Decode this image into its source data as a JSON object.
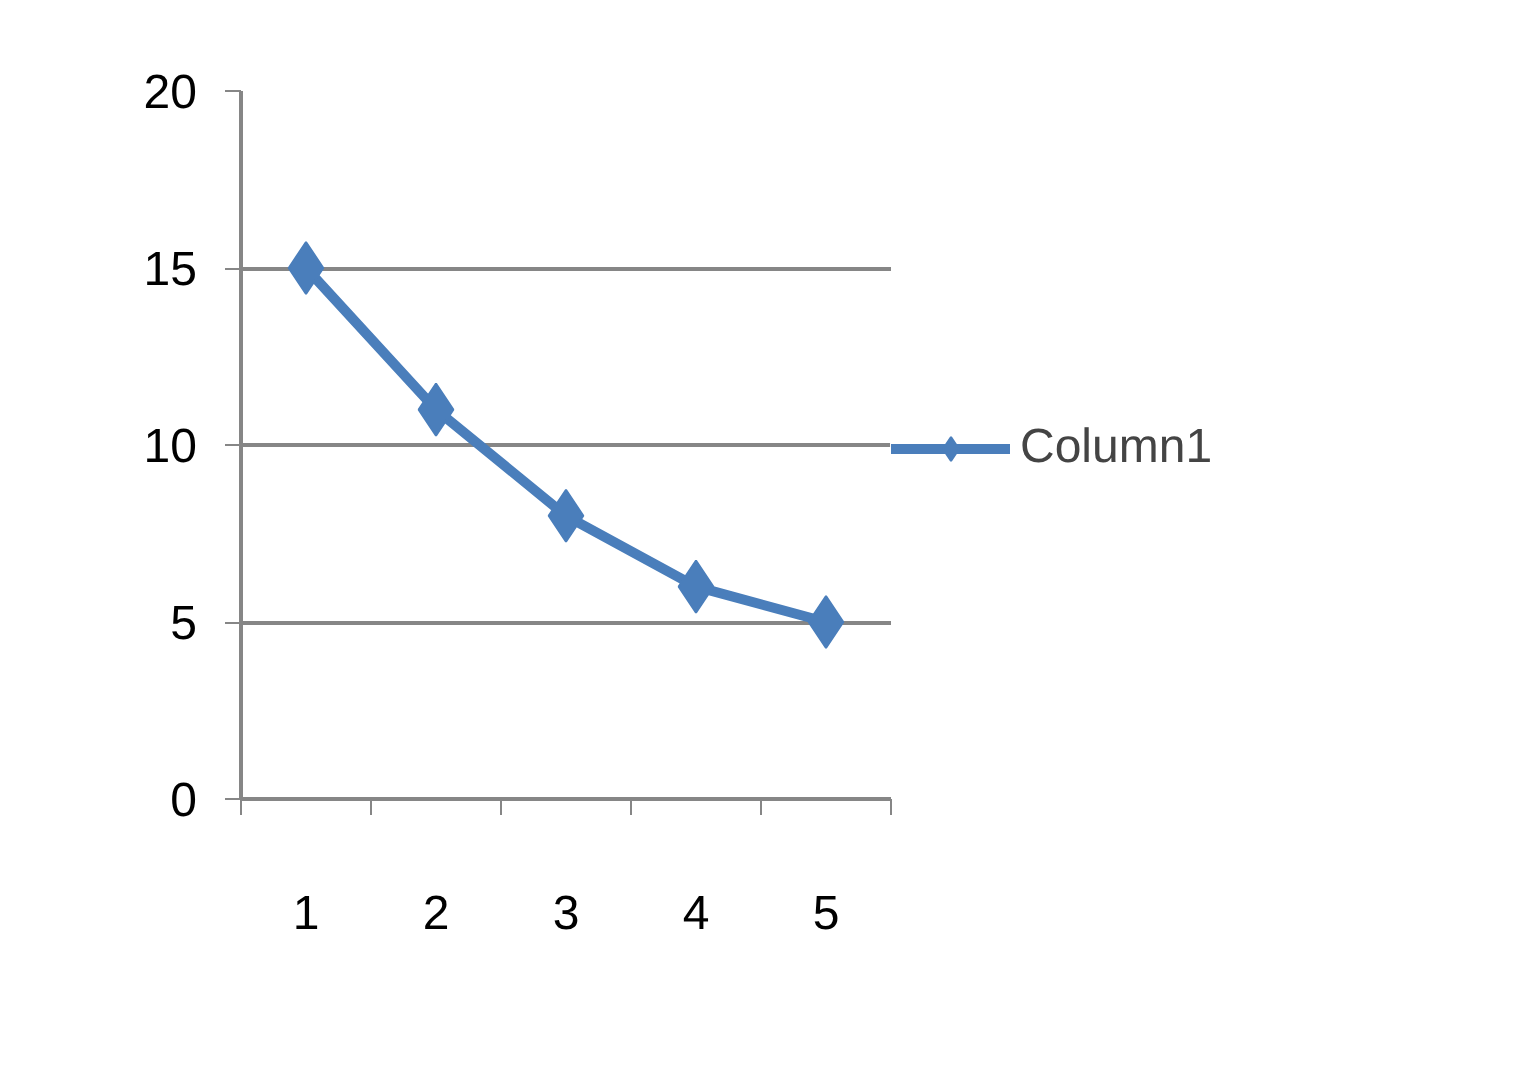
{
  "chart_data": {
    "type": "line",
    "categories": [
      "1",
      "2",
      "3",
      "4",
      "5"
    ],
    "series": [
      {
        "name": "Column1",
        "color": "#4a7ebb",
        "values": [
          15,
          11,
          8,
          6,
          5
        ]
      }
    ],
    "ylim": [
      0,
      20
    ],
    "yticks": [
      0,
      5,
      10,
      15,
      20
    ],
    "grid": "y",
    "legend": "right",
    "marker": "diamond",
    "line_style": "solid"
  }
}
